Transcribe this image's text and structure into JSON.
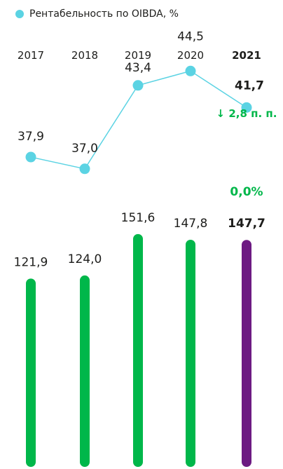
{
  "legend": {
    "label": "Рентабельность по OIBDA, %"
  },
  "colors": {
    "bar": "#00b74a",
    "bar_highlight": "#6d1a82",
    "line": "#5bd3e3",
    "change_text": "#00b74a",
    "text": "#1d1d1b"
  },
  "chart_data": {
    "type": "bar",
    "categories": [
      "2017",
      "2018",
      "2019",
      "2020",
      "2021"
    ],
    "highlight_category": "2021",
    "series": [
      {
        "type": "bar",
        "values": [
          121.9,
          124.0,
          151.6,
          147.8,
          147.7
        ],
        "labels": [
          "121,9",
          "124,0",
          "151,6",
          "147,8",
          "147,7"
        ]
      },
      {
        "name": "Рентабельность по OIBDA, %",
        "type": "line",
        "values": [
          37.9,
          37.0,
          43.4,
          44.5,
          41.7
        ],
        "labels": [
          "37,9",
          "37,0",
          "43,4",
          "44,5",
          "41,7"
        ]
      }
    ],
    "annotations": {
      "bar_change_2021": "0,0%",
      "line_change_2021": "↓ 2,8 п. п."
    },
    "grid": false,
    "legend_position": "top-left"
  }
}
